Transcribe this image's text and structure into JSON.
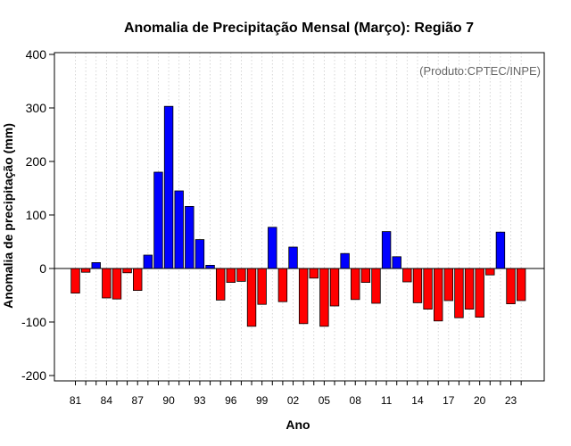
{
  "chart_data": {
    "type": "bar",
    "title": "Anomalia de Precipitação Mensal (Março): Região 7",
    "xlabel": "Ano",
    "ylabel": "Anomalia de precipitação (mm)",
    "credit": "(Produto:CPTEC/INPE)",
    "ylim": [
      -210,
      410
    ],
    "yticks": [
      -200,
      -100,
      0,
      100,
      200,
      300,
      400
    ],
    "xtick_labels": [
      "81",
      "84",
      "87",
      "90",
      "93",
      "96",
      "99",
      "02",
      "05",
      "08",
      "11",
      "14",
      "17",
      "20",
      "23"
    ],
    "grid": "vertical dotted lines, one per year",
    "colors": {
      "positive": "#0000ff",
      "negative": "#ff0000"
    },
    "categories": [
      "1981",
      "1982",
      "1983",
      "1984",
      "1985",
      "1986",
      "1987",
      "1988",
      "1989",
      "1990",
      "1991",
      "1992",
      "1993",
      "1994",
      "1995",
      "1996",
      "1997",
      "1998",
      "1999",
      "2000",
      "2001",
      "2002",
      "2003",
      "2004",
      "2005",
      "2006",
      "2007",
      "2008",
      "2009",
      "2010",
      "2011",
      "2012",
      "2013",
      "2014",
      "2015",
      "2016",
      "2017",
      "2018",
      "2019",
      "2020",
      "2021",
      "2022",
      "2023",
      "2024"
    ],
    "values": [
      -46,
      -7,
      11,
      -55,
      -57,
      -8,
      -41,
      25,
      180,
      303,
      145,
      116,
      54,
      6,
      -59,
      -26,
      -24,
      -108,
      -67,
      77,
      -62,
      40,
      -103,
      -18,
      -108,
      -70,
      28,
      -58,
      -26,
      -65,
      69,
      22,
      -25,
      -64,
      -76,
      -98,
      -60,
      -92,
      -76,
      -91,
      -12,
      68,
      -66,
      -60
    ]
  }
}
